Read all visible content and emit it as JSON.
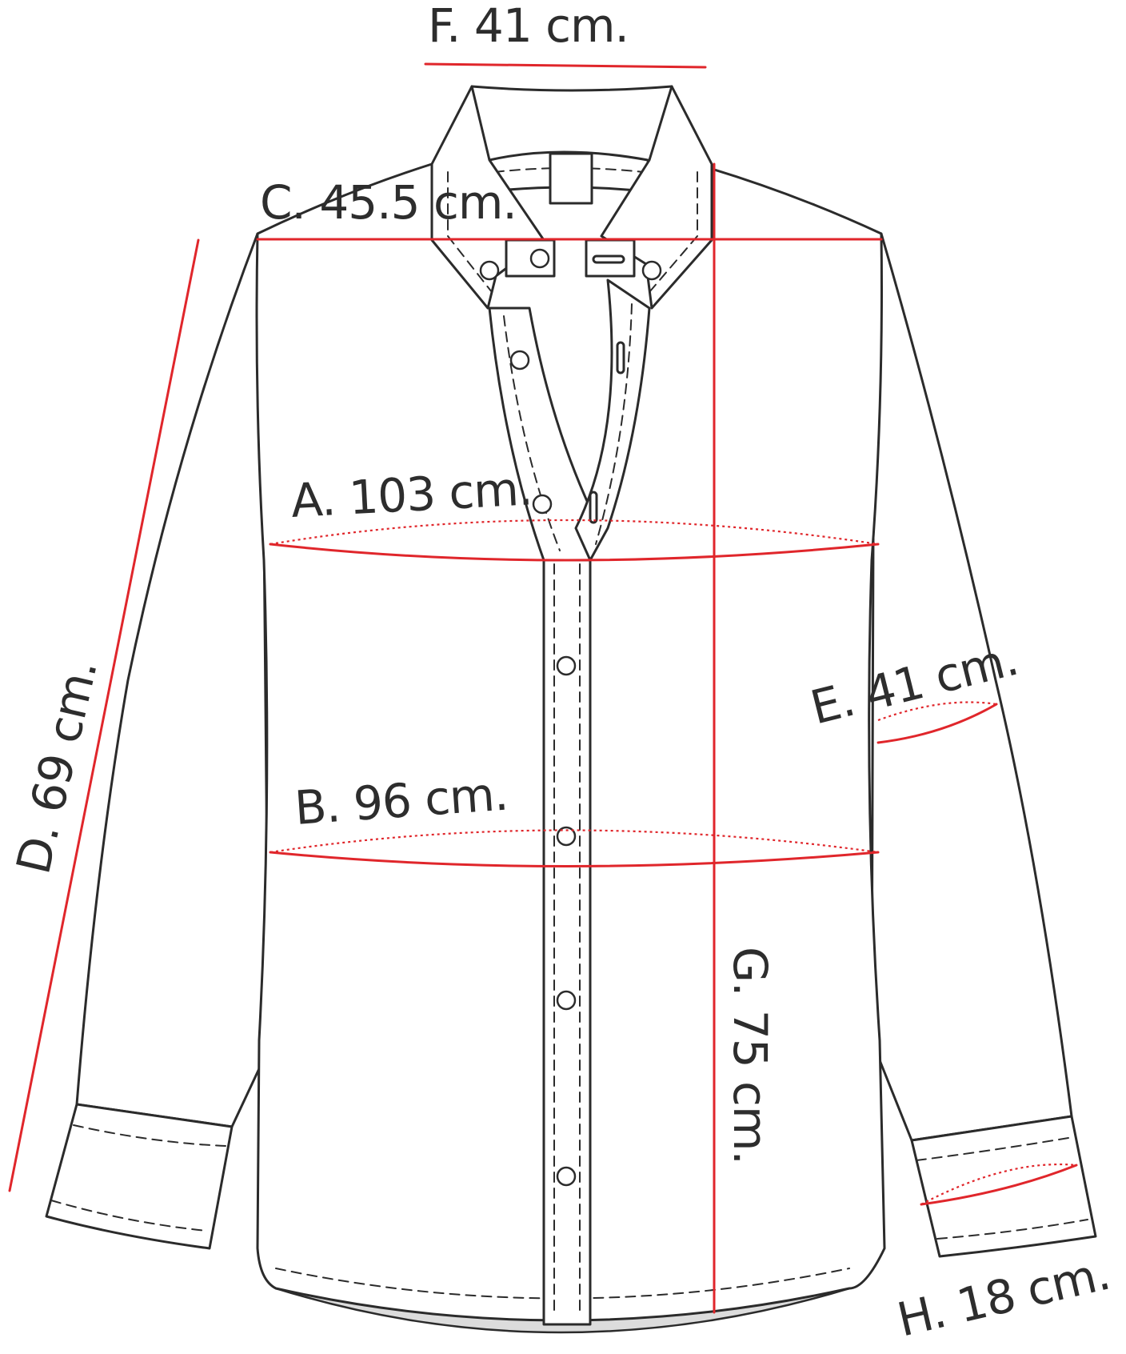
{
  "measurements": {
    "A": {
      "text": "A. 103 cm.",
      "color": "#e0262b"
    },
    "B": {
      "text": "B. 96 cm.",
      "color": "#e0262b"
    },
    "C": {
      "text": "C. 45.5 cm.",
      "color": "#e0262b"
    },
    "D": {
      "text": "D. 69 cm.",
      "color": "#e0262b"
    },
    "E": {
      "text": "E. 41 cm.",
      "color": "#e0262b"
    },
    "F": {
      "text": "F. 41 cm.",
      "color": "#e0262b"
    },
    "G": {
      "text": "G. 75 cm.",
      "color": "#e0262b"
    },
    "H": {
      "text": "H. 18 cm.",
      "color": "#e0262b"
    }
  }
}
